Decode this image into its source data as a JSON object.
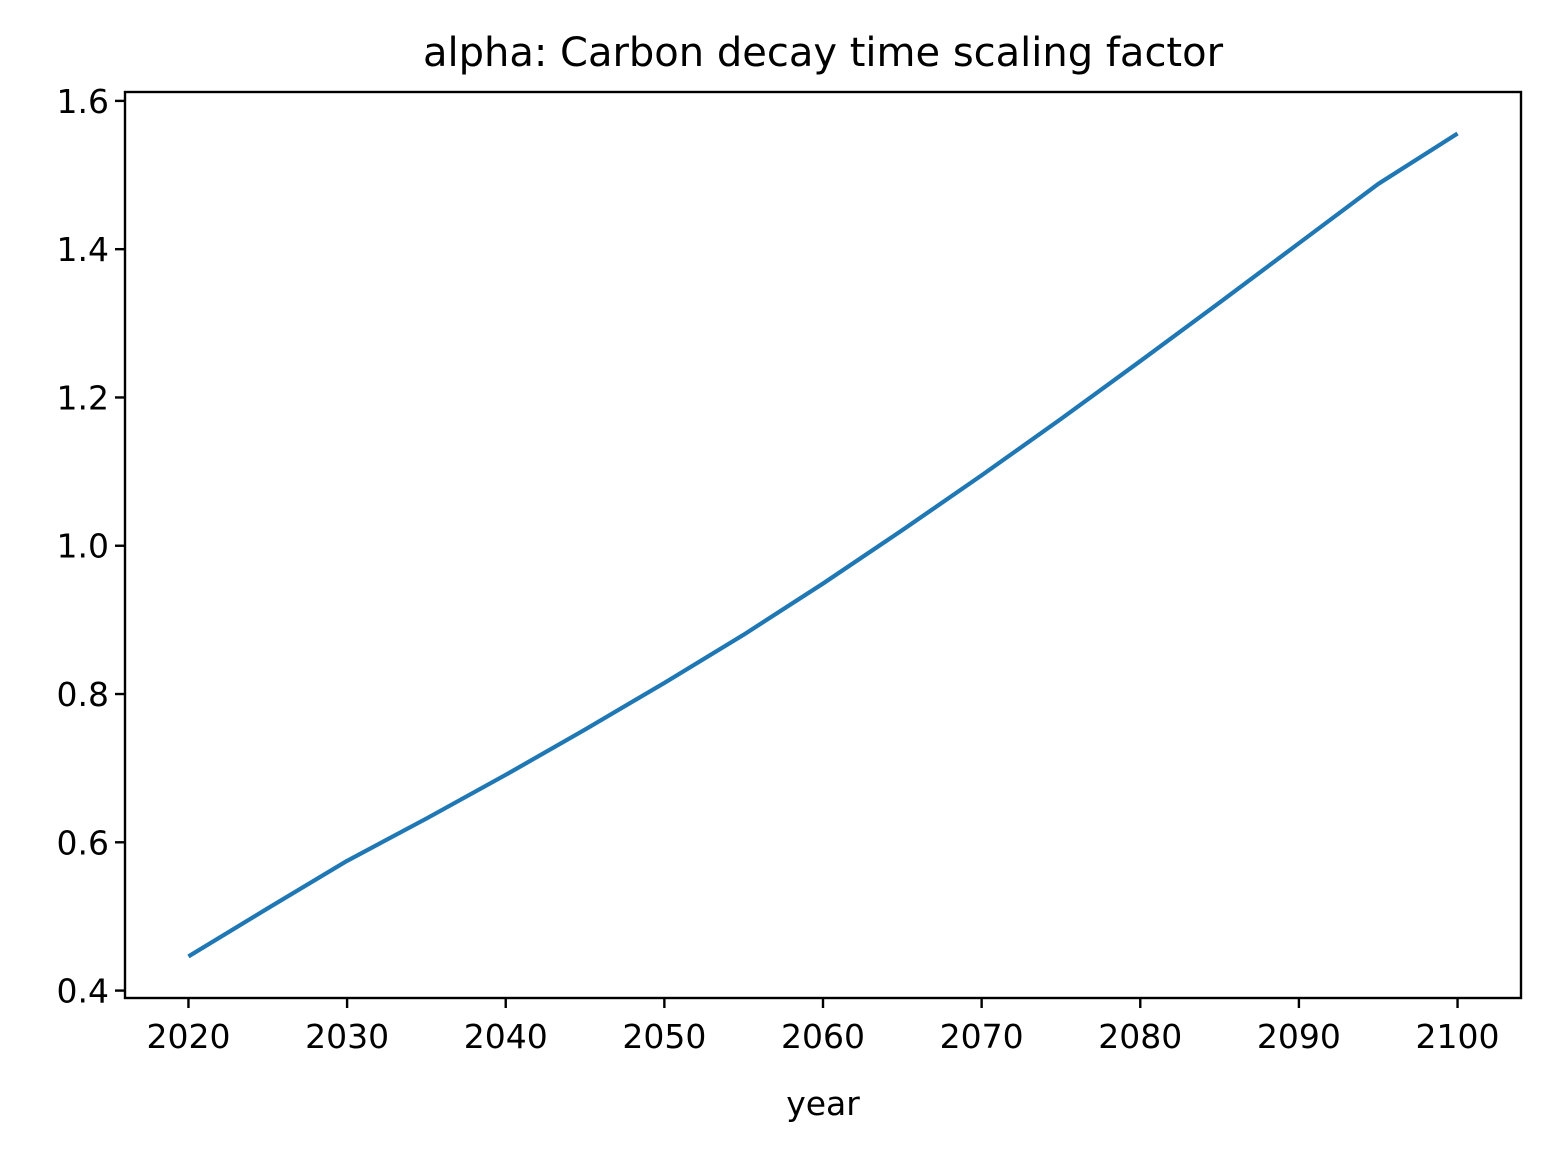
{
  "chart_data": {
    "type": "line",
    "title": "alpha: Carbon decay time scaling factor",
    "xlabel": "year",
    "ylabel": "",
    "xlim": [
      2016,
      2104
    ],
    "ylim": [
      0.39,
      1.612
    ],
    "x_ticks": [
      2020,
      2030,
      2040,
      2050,
      2060,
      2070,
      2080,
      2090,
      2100
    ],
    "y_ticks": [
      0.4,
      0.6,
      0.8,
      1.0,
      1.2,
      1.4,
      1.6
    ],
    "y_tick_labels": [
      "0.4",
      "0.6",
      "0.8",
      "1.0",
      "1.2",
      "1.4",
      "1.6"
    ],
    "grid": false,
    "legend": "none",
    "line_color": "#1f77b4",
    "series": [
      {
        "x": [
          2020,
          2025,
          2030,
          2035,
          2040,
          2045,
          2050,
          2055,
          2060,
          2065,
          2070,
          2075,
          2080,
          2085,
          2090,
          2095,
          2100
        ],
        "values": [
          0.446,
          0.511,
          0.575,
          0.632,
          0.691,
          0.752,
          0.815,
          0.88,
          0.949,
          1.021,
          1.095,
          1.171,
          1.249,
          1.328,
          1.408,
          1.488,
          1.556
        ]
      }
    ]
  }
}
